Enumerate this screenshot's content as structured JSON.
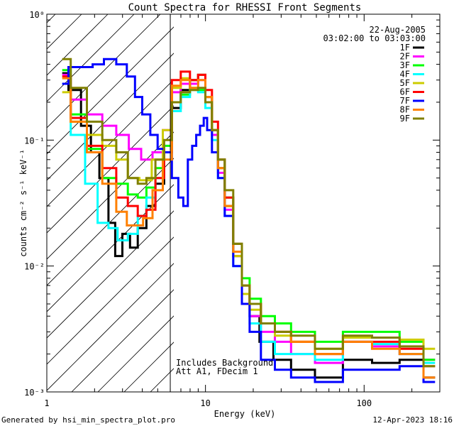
{
  "chart_data": {
    "type": "line",
    "title": "Count Spectra for RHESSI Front Segments",
    "xlabel": "Energy (keV)",
    "ylabel": "counts cm⁻² s⁻¹ keV⁻¹",
    "xscale": "log",
    "yscale": "log",
    "xlim": [
      1,
      300
    ],
    "ylim": [
      0.001,
      1
    ],
    "x_ticks": [
      {
        "value": 1,
        "label": "1"
      },
      {
        "value": 10,
        "label": "10"
      },
      {
        "value": 100,
        "label": "100"
      }
    ],
    "y_ticks": [
      {
        "value": 1,
        "label": "10⁰"
      },
      {
        "value": 0.1,
        "label": "10⁻¹"
      },
      {
        "value": 0.01,
        "label": "10⁻²"
      },
      {
        "value": 0.001,
        "label": "10⁻³"
      }
    ],
    "date": "22-Aug-2005",
    "time_range": "03:02:00 to 03:03:00",
    "threshold_energy": 6,
    "annotation": [
      "Includes Background",
      "Att A1, FDecim 1"
    ],
    "footer_left": "Generated by hsi_min_spectra_plot.pro",
    "footer_right": "12-Apr-2023 18:16",
    "series": [
      {
        "name": "1F",
        "color": "#000000",
        "points": [
          [
            1.25,
            0.34
          ],
          [
            1.5,
            0.25
          ],
          [
            1.8,
            0.13
          ],
          [
            2.0,
            0.08
          ],
          [
            2.3,
            0.05
          ],
          [
            2.6,
            0.022
          ],
          [
            2.8,
            0.012
          ],
          [
            3.2,
            0.018
          ],
          [
            3.5,
            0.014
          ],
          [
            4.0,
            0.02
          ],
          [
            4.5,
            0.03
          ],
          [
            5.2,
            0.045
          ],
          [
            5.8,
            0.08
          ],
          [
            6.5,
            0.18
          ],
          [
            7.5,
            0.25
          ],
          [
            8.5,
            0.3
          ],
          [
            9.5,
            0.33
          ],
          [
            10.5,
            0.22
          ],
          [
            11.5,
            0.12
          ],
          [
            12.5,
            0.06
          ],
          [
            14,
            0.03
          ],
          [
            16,
            0.012
          ],
          [
            18,
            0.006
          ],
          [
            20,
            0.004
          ],
          [
            24,
            0.0025
          ],
          [
            30,
            0.0018
          ],
          [
            40,
            0.0015
          ],
          [
            60,
            0.0013
          ],
          [
            90,
            0.0018
          ],
          [
            140,
            0.0017
          ],
          [
            200,
            0.0018
          ],
          [
            280,
            0.0013
          ]
        ]
      },
      {
        "name": "2F",
        "color": "#ff00ff",
        "points": [
          [
            1.25,
            0.33
          ],
          [
            1.6,
            0.21
          ],
          [
            2.0,
            0.16
          ],
          [
            2.5,
            0.13
          ],
          [
            3.0,
            0.11
          ],
          [
            3.6,
            0.085
          ],
          [
            4.3,
            0.07
          ],
          [
            5.0,
            0.08
          ],
          [
            5.8,
            0.12
          ],
          [
            6.5,
            0.24
          ],
          [
            7.5,
            0.28
          ],
          [
            8.5,
            0.28
          ],
          [
            9.5,
            0.3
          ],
          [
            10.5,
            0.2
          ],
          [
            11.5,
            0.11
          ],
          [
            12.5,
            0.055
          ],
          [
            14,
            0.028
          ],
          [
            16,
            0.012
          ],
          [
            18,
            0.006
          ],
          [
            20,
            0.004
          ],
          [
            25,
            0.003
          ],
          [
            30,
            0.0025
          ],
          [
            40,
            0.002
          ],
          [
            60,
            0.0017
          ],
          [
            90,
            0.0025
          ],
          [
            140,
            0.0023
          ],
          [
            200,
            0.002
          ],
          [
            280,
            0.0018
          ]
        ]
      },
      {
        "name": "3F",
        "color": "#00ff00",
        "points": [
          [
            1.25,
            0.36
          ],
          [
            1.6,
            0.16
          ],
          [
            2.0,
            0.085
          ],
          [
            2.5,
            0.05
          ],
          [
            3.0,
            0.045
          ],
          [
            3.5,
            0.037
          ],
          [
            4.0,
            0.035
          ],
          [
            4.5,
            0.042
          ],
          [
            5.2,
            0.06
          ],
          [
            5.8,
            0.09
          ],
          [
            6.5,
            0.2
          ],
          [
            7.5,
            0.23
          ],
          [
            8.5,
            0.26
          ],
          [
            9.5,
            0.25
          ],
          [
            10.5,
            0.2
          ],
          [
            11.5,
            0.12
          ],
          [
            12.5,
            0.07
          ],
          [
            14,
            0.035
          ],
          [
            16,
            0.015
          ],
          [
            18,
            0.008
          ],
          [
            20,
            0.0055
          ],
          [
            25,
            0.004
          ],
          [
            30,
            0.0035
          ],
          [
            40,
            0.003
          ],
          [
            60,
            0.0025
          ],
          [
            90,
            0.003
          ],
          [
            140,
            0.003
          ],
          [
            200,
            0.0025
          ],
          [
            280,
            0.0018
          ]
        ]
      },
      {
        "name": "4F",
        "color": "#00ffff",
        "points": [
          [
            1.25,
            0.28
          ],
          [
            1.6,
            0.11
          ],
          [
            1.9,
            0.045
          ],
          [
            2.3,
            0.022
          ],
          [
            2.6,
            0.02
          ],
          [
            3.0,
            0.016
          ],
          [
            3.5,
            0.018
          ],
          [
            4.0,
            0.025
          ],
          [
            4.5,
            0.035
          ],
          [
            5.2,
            0.05
          ],
          [
            5.8,
            0.08
          ],
          [
            6.5,
            0.17
          ],
          [
            7.5,
            0.22
          ],
          [
            8.5,
            0.25
          ],
          [
            9.5,
            0.24
          ],
          [
            10.5,
            0.18
          ],
          [
            11.5,
            0.1
          ],
          [
            12.5,
            0.05
          ],
          [
            14,
            0.025
          ],
          [
            16,
            0.01
          ],
          [
            18,
            0.005
          ],
          [
            20,
            0.0035
          ],
          [
            25,
            0.0025
          ],
          [
            30,
            0.002
          ],
          [
            40,
            0.002
          ],
          [
            60,
            0.0018
          ],
          [
            90,
            0.0025
          ],
          [
            140,
            0.0024
          ],
          [
            200,
            0.002
          ],
          [
            280,
            0.0017
          ]
        ]
      },
      {
        "name": "5F",
        "color": "#cccc00",
        "points": [
          [
            1.25,
            0.24
          ],
          [
            1.6,
            0.14
          ],
          [
            2.0,
            0.11
          ],
          [
            2.5,
            0.09
          ],
          [
            3.0,
            0.07
          ],
          [
            3.5,
            0.05
          ],
          [
            4.2,
            0.048
          ],
          [
            5.0,
            0.07
          ],
          [
            5.8,
            0.12
          ],
          [
            6.5,
            0.26
          ],
          [
            7.5,
            0.31
          ],
          [
            8.5,
            0.3
          ],
          [
            9.5,
            0.33
          ],
          [
            10.5,
            0.22
          ],
          [
            11.5,
            0.12
          ],
          [
            12.5,
            0.06
          ],
          [
            14,
            0.03
          ],
          [
            16,
            0.012
          ],
          [
            18,
            0.006
          ],
          [
            20,
            0.0045
          ],
          [
            25,
            0.0035
          ],
          [
            30,
            0.0028
          ],
          [
            40,
            0.0025
          ],
          [
            60,
            0.0022
          ],
          [
            90,
            0.0027
          ],
          [
            140,
            0.0027
          ],
          [
            200,
            0.0026
          ],
          [
            280,
            0.0022
          ]
        ]
      },
      {
        "name": "6F",
        "color": "#ff0000",
        "points": [
          [
            1.25,
            0.32
          ],
          [
            1.6,
            0.15
          ],
          [
            2.0,
            0.09
          ],
          [
            2.5,
            0.06
          ],
          [
            3.0,
            0.035
          ],
          [
            3.5,
            0.03
          ],
          [
            4.0,
            0.025
          ],
          [
            4.5,
            0.028
          ],
          [
            5.2,
            0.05
          ],
          [
            5.8,
            0.08
          ],
          [
            6.5,
            0.3
          ],
          [
            7.5,
            0.35
          ],
          [
            8.5,
            0.3
          ],
          [
            9.5,
            0.33
          ],
          [
            10.5,
            0.25
          ],
          [
            11.5,
            0.14
          ],
          [
            12.5,
            0.07
          ],
          [
            14,
            0.035
          ],
          [
            16,
            0.015
          ],
          [
            18,
            0.007
          ],
          [
            20,
            0.005
          ],
          [
            25,
            0.0035
          ],
          [
            30,
            0.003
          ],
          [
            40,
            0.0025
          ],
          [
            60,
            0.002
          ],
          [
            90,
            0.0025
          ],
          [
            140,
            0.0025
          ],
          [
            200,
            0.0022
          ],
          [
            280,
            0.0016
          ]
        ]
      },
      {
        "name": "7F",
        "color": "#0000ff",
        "points": [
          [
            1.25,
            0.28
          ],
          [
            1.5,
            0.38
          ],
          [
            1.8,
            0.38
          ],
          [
            2.1,
            0.4
          ],
          [
            2.5,
            0.44
          ],
          [
            3.0,
            0.4
          ],
          [
            3.4,
            0.32
          ],
          [
            3.8,
            0.22
          ],
          [
            4.2,
            0.16
          ],
          [
            4.8,
            0.11
          ],
          [
            5.2,
            0.085
          ],
          [
            5.8,
            0.08
          ],
          [
            6.5,
            0.05
          ],
          [
            7.0,
            0.035
          ],
          [
            7.5,
            0.03
          ],
          [
            8.0,
            0.07
          ],
          [
            8.5,
            0.09
          ],
          [
            9.0,
            0.11
          ],
          [
            9.5,
            0.13
          ],
          [
            10.0,
            0.15
          ],
          [
            10.5,
            0.12
          ],
          [
            11.5,
            0.08
          ],
          [
            12.5,
            0.05
          ],
          [
            14,
            0.025
          ],
          [
            16,
            0.01
          ],
          [
            18,
            0.005
          ],
          [
            20,
            0.003
          ],
          [
            25,
            0.0018
          ],
          [
            30,
            0.0015
          ],
          [
            40,
            0.0013
          ],
          [
            60,
            0.0012
          ],
          [
            90,
            0.0015
          ],
          [
            140,
            0.0015
          ],
          [
            200,
            0.0016
          ],
          [
            280,
            0.0012
          ]
        ]
      },
      {
        "name": "8F",
        "color": "#ff8000",
        "points": [
          [
            1.25,
            0.31
          ],
          [
            1.6,
            0.14
          ],
          [
            2.0,
            0.08
          ],
          [
            2.5,
            0.045
          ],
          [
            3.0,
            0.027
          ],
          [
            3.4,
            0.021
          ],
          [
            3.8,
            0.021
          ],
          [
            4.3,
            0.024
          ],
          [
            5.0,
            0.04
          ],
          [
            5.8,
            0.07
          ],
          [
            6.5,
            0.27
          ],
          [
            7.5,
            0.3
          ],
          [
            8.5,
            0.26
          ],
          [
            9.5,
            0.3
          ],
          [
            10.5,
            0.22
          ],
          [
            11.5,
            0.12
          ],
          [
            12.5,
            0.06
          ],
          [
            14,
            0.03
          ],
          [
            16,
            0.013
          ],
          [
            18,
            0.007
          ],
          [
            20,
            0.005
          ],
          [
            25,
            0.0035
          ],
          [
            30,
            0.003
          ],
          [
            40,
            0.0025
          ],
          [
            60,
            0.002
          ],
          [
            90,
            0.0025
          ],
          [
            140,
            0.0022
          ],
          [
            200,
            0.002
          ],
          [
            280,
            0.0013
          ]
        ]
      },
      {
        "name": "9F",
        "color": "#808000",
        "points": [
          [
            1.25,
            0.44
          ],
          [
            1.6,
            0.26
          ],
          [
            2.0,
            0.14
          ],
          [
            2.5,
            0.1
          ],
          [
            3.0,
            0.08
          ],
          [
            3.5,
            0.05
          ],
          [
            4.0,
            0.045
          ],
          [
            4.5,
            0.05
          ],
          [
            5.2,
            0.07
          ],
          [
            5.8,
            0.1
          ],
          [
            6.5,
            0.2
          ],
          [
            7.5,
            0.24
          ],
          [
            8.5,
            0.25
          ],
          [
            9.5,
            0.26
          ],
          [
            10.5,
            0.2
          ],
          [
            11.5,
            0.12
          ],
          [
            12.5,
            0.07
          ],
          [
            14,
            0.04
          ],
          [
            16,
            0.015
          ],
          [
            18,
            0.007
          ],
          [
            20,
            0.005
          ],
          [
            25,
            0.0035
          ],
          [
            30,
            0.003
          ],
          [
            40,
            0.0028
          ],
          [
            60,
            0.0022
          ],
          [
            90,
            0.0028
          ],
          [
            140,
            0.0027
          ],
          [
            200,
            0.0023
          ],
          [
            280,
            0.0016
          ]
        ]
      }
    ]
  }
}
